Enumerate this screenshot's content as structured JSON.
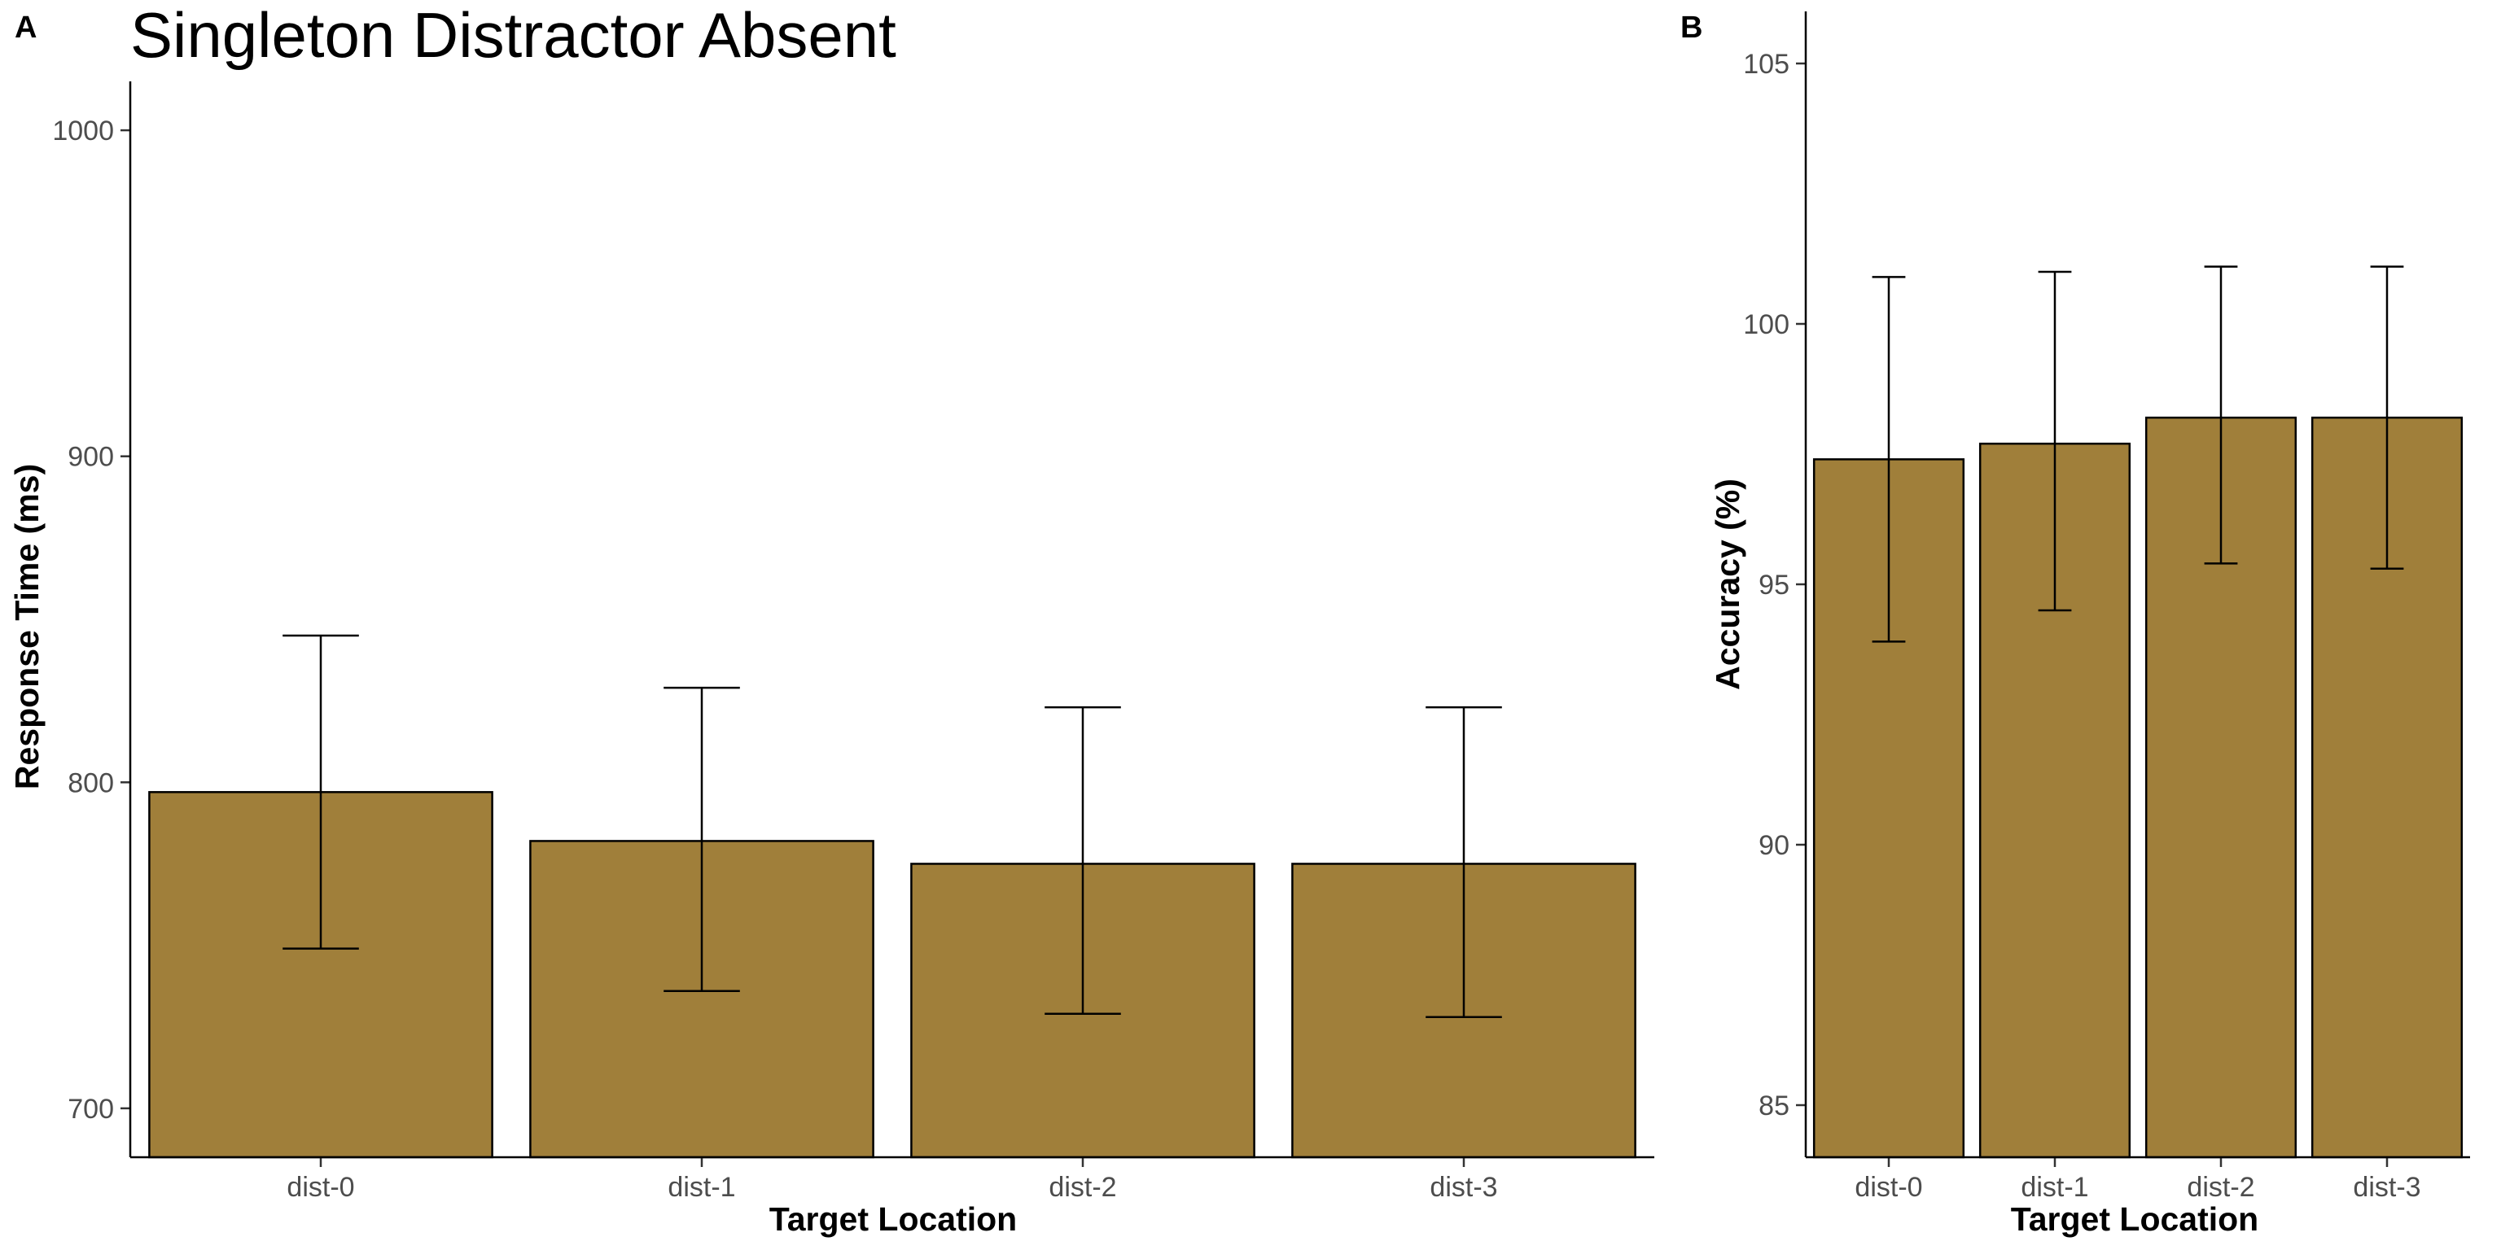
{
  "chart_data": [
    {
      "panel_label": "A",
      "type": "bar",
      "title": "Singleton Distractor Absent",
      "xlabel": "Target Location",
      "ylabel": "Response Time (ms)",
      "categories": [
        "dist-0",
        "dist-1",
        "dist-2",
        "dist-3"
      ],
      "values": [
        797,
        782,
        775,
        775
      ],
      "error_low": [
        749,
        736,
        729,
        728
      ],
      "error_high": [
        845,
        829,
        823,
        823
      ],
      "ylim": [
        685,
        1015
      ],
      "yticks": [
        700,
        800,
        900,
        1000
      ],
      "bar_color": "#a07f3a",
      "grid": false
    },
    {
      "panel_label": "B",
      "type": "bar",
      "title": "",
      "xlabel": "Target Location",
      "ylabel": "Accuracy (%)",
      "categories": [
        "dist-0",
        "dist-1",
        "dist-2",
        "dist-3"
      ],
      "values": [
        97.4,
        97.7,
        98.2,
        98.2
      ],
      "error_low": [
        93.9,
        94.5,
        95.4,
        95.3
      ],
      "error_high": [
        100.9,
        101.0,
        101.1,
        101.1
      ],
      "ylim": [
        84,
        106
      ],
      "yticks": [
        85,
        90,
        95,
        100,
        105
      ],
      "bar_color": "#a07f3a",
      "grid": false
    }
  ]
}
